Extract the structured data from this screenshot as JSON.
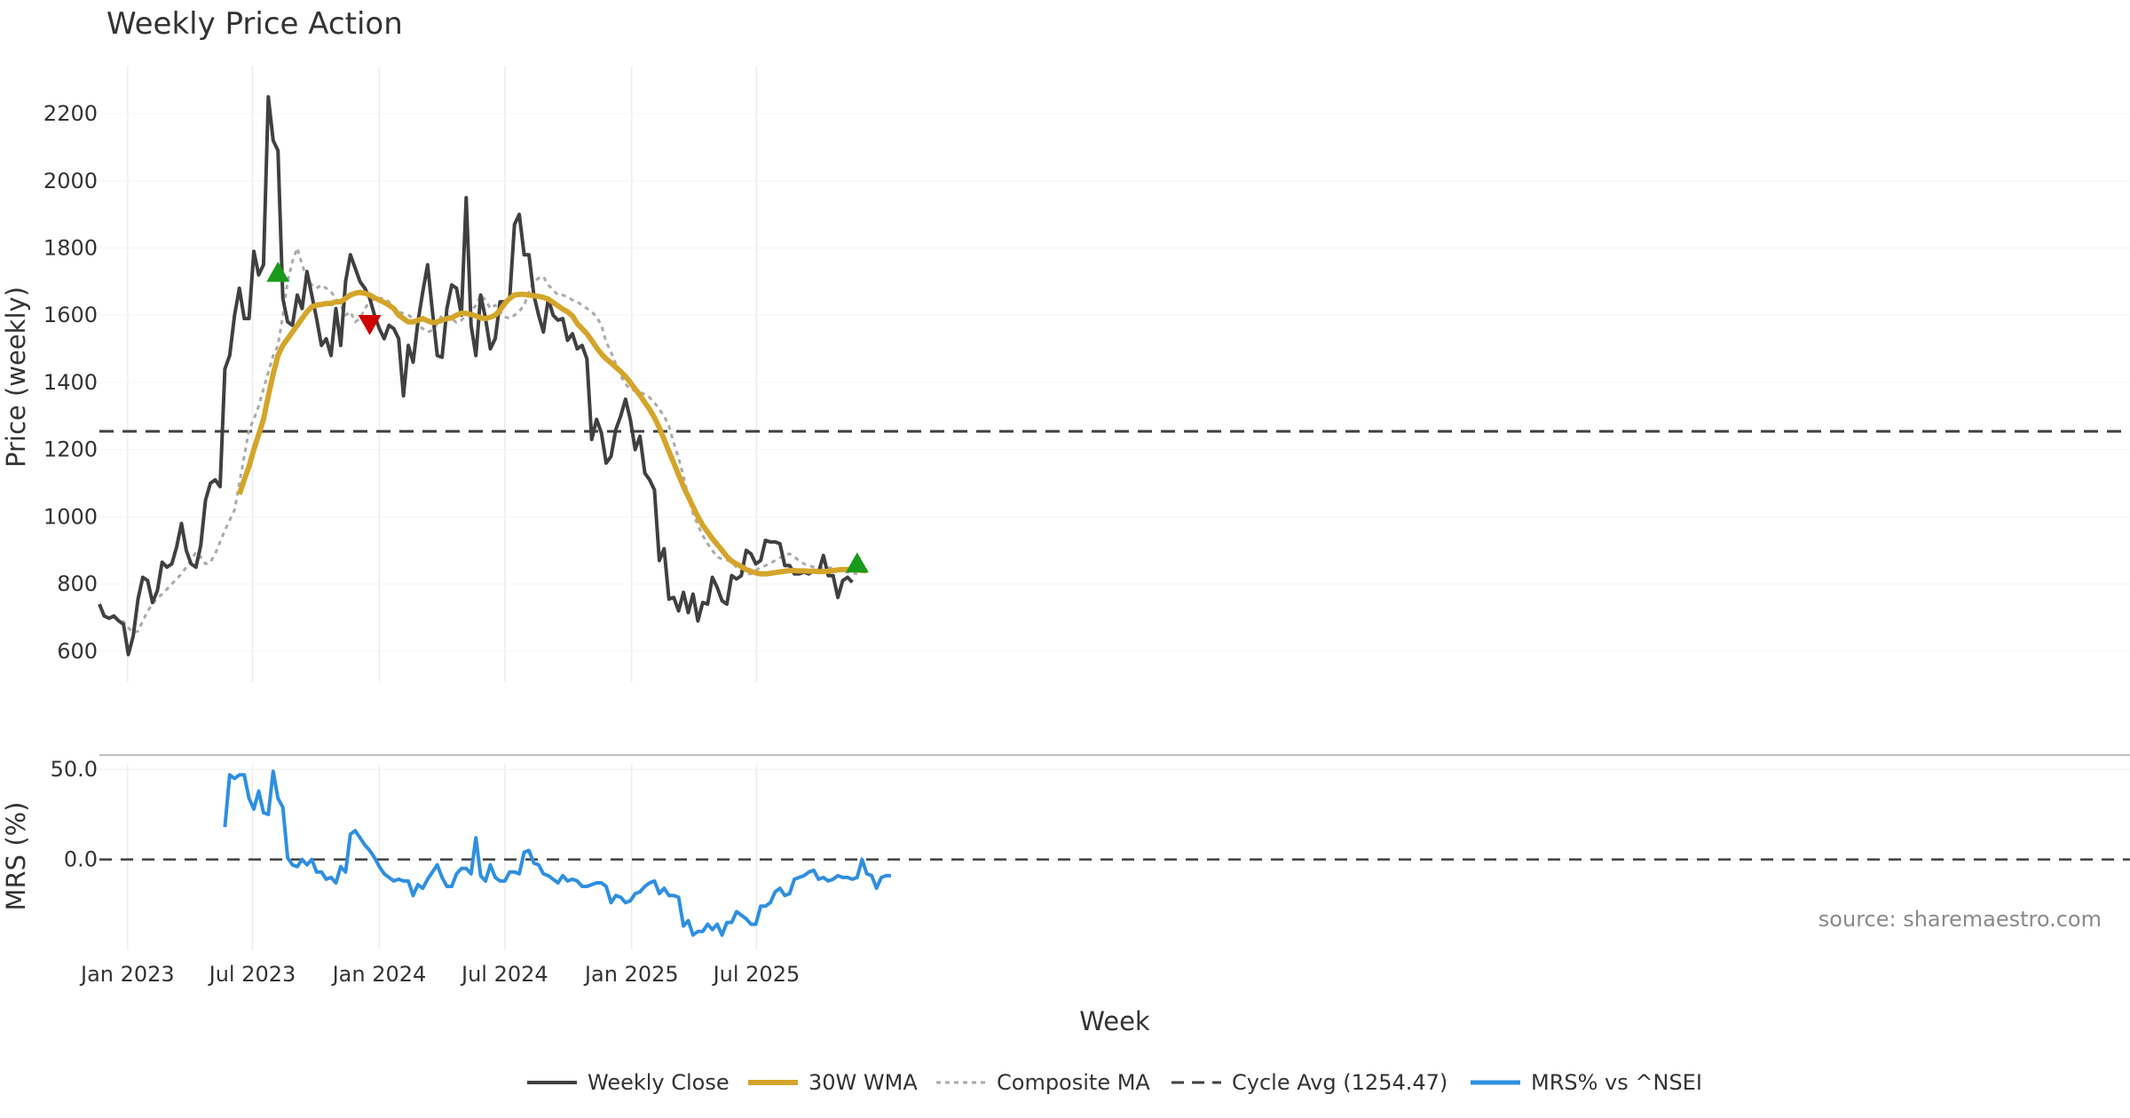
{
  "chart_data": [
    {
      "type": "line",
      "title": "Weekly Price Action",
      "ylabel": "Price (weekly)",
      "ylim": [
        510,
        2340
      ],
      "yticks": [
        600,
        800,
        1000,
        1200,
        1400,
        1600,
        1800,
        2000,
        2200
      ],
      "x_start": "2022-11-21",
      "x_step_days": 7,
      "cycle_avg": 1254.47,
      "series": [
        {
          "name": "Weekly Close",
          "color": "#404040",
          "start_index": 0,
          "values": [
            740,
            705,
            698,
            705,
            690,
            680,
            590,
            645,
            755,
            820,
            810,
            745,
            780,
            865,
            850,
            860,
            910,
            980,
            900,
            860,
            850,
            915,
            1050,
            1100,
            1110,
            1090,
            1440,
            1480,
            1600,
            1680,
            1590,
            1590,
            1790,
            1720,
            1750,
            2250,
            2120,
            2090,
            1650,
            1580,
            1570,
            1660,
            1620,
            1730,
            1660,
            1590,
            1510,
            1530,
            1480,
            1620,
            1510,
            1700,
            1780,
            1740,
            1700,
            1680,
            1650,
            1600,
            1560,
            1530,
            1570,
            1560,
            1530,
            1360,
            1510,
            1460,
            1580,
            1670,
            1750,
            1610,
            1480,
            1475,
            1620,
            1690,
            1680,
            1600,
            1950,
            1570,
            1480,
            1660,
            1590,
            1500,
            1530,
            1640,
            1640,
            1650,
            1870,
            1900,
            1780,
            1780,
            1660,
            1600,
            1550,
            1650,
            1600,
            1585,
            1590,
            1525,
            1545,
            1500,
            1510,
            1470,
            1230,
            1290,
            1250,
            1160,
            1180,
            1260,
            1300,
            1350,
            1290,
            1200,
            1240,
            1130,
            1110,
            1080,
            870,
            905,
            755,
            760,
            720,
            775,
            715,
            770,
            690,
            745,
            740,
            820,
            790,
            750,
            740,
            825,
            815,
            825,
            900,
            890,
            860,
            870,
            930,
            925,
            925,
            920,
            855,
            855,
            830,
            830,
            835,
            830,
            840,
            835,
            885,
            825,
            825,
            760,
            810,
            820,
            805
          ]
        },
        {
          "name": "30W WMA",
          "color": "#D4A52A",
          "start_index": 29,
          "values": [
            1067,
            1110,
            1150,
            1200,
            1245,
            1290,
            1360,
            1425,
            1480,
            1510,
            1530,
            1550,
            1570,
            1590,
            1610,
            1625,
            1630,
            1632,
            1635,
            1635,
            1640,
            1640,
            1650,
            1660,
            1665,
            1668,
            1665,
            1660,
            1652,
            1645,
            1638,
            1630,
            1620,
            1600,
            1590,
            1580,
            1580,
            1585,
            1590,
            1583,
            1578,
            1580,
            1585,
            1590,
            1592,
            1600,
            1606,
            1605,
            1602,
            1598,
            1592,
            1590,
            1594,
            1600,
            1615,
            1635,
            1650,
            1660,
            1662,
            1662,
            1660,
            1658,
            1656,
            1653,
            1648,
            1638,
            1628,
            1618,
            1610,
            1598,
            1575,
            1560,
            1545,
            1525,
            1503,
            1485,
            1470,
            1458,
            1445,
            1432,
            1418,
            1400,
            1380,
            1362,
            1340,
            1320,
            1295,
            1265,
            1230,
            1195,
            1160,
            1125,
            1090,
            1060,
            1030,
            1000,
            975,
            955,
            935,
            918,
            900,
            882,
            868,
            860,
            852,
            843,
            838,
            833,
            830,
            830,
            832,
            834,
            836,
            838,
            840,
            840,
            839,
            839,
            838,
            838,
            837,
            837,
            838,
            840,
            842,
            843,
            843,
            842,
            842,
            840,
            839
          ]
        },
        {
          "name": "Composite MA",
          "color": "#aaaaaa",
          "start_index": 3,
          "values": [
            700,
            693,
            688,
            670,
            655,
            660,
            690,
            720,
            740,
            758,
            770,
            785,
            800,
            815,
            830,
            850,
            870,
            895,
            880,
            860,
            865,
            890,
            925,
            960,
            990,
            1020,
            1100,
            1180,
            1260,
            1290,
            1330,
            1380,
            1430,
            1480,
            1510,
            1600,
            1700,
            1760,
            1800,
            1750,
            1710,
            1690,
            1680,
            1690,
            1680,
            1670,
            1650,
            1630,
            1600,
            1610,
            1580,
            1590,
            1620,
            1640,
            1650,
            1650,
            1650,
            1640,
            1620,
            1610,
            1605,
            1600,
            1590,
            1570,
            1560,
            1550,
            1555,
            1575,
            1600,
            1600,
            1590,
            1578,
            1585,
            1600,
            1612,
            1630,
            1660,
            1645,
            1620,
            1630,
            1610,
            1595,
            1590,
            1600,
            1612,
            1630,
            1670,
            1700,
            1710,
            1715,
            1690,
            1675,
            1660,
            1660,
            1655,
            1645,
            1640,
            1630,
            1620,
            1610,
            1595,
            1570,
            1520,
            1490,
            1455,
            1420,
            1395,
            1380,
            1375,
            1370,
            1365,
            1355,
            1340,
            1320,
            1300,
            1270,
            1220,
            1175,
            1120,
            1060,
            1010,
            975,
            945,
            920,
            900,
            880,
            875,
            872,
            865,
            850,
            838,
            830,
            830,
            840,
            850,
            855,
            862,
            870,
            878,
            885,
            890,
            880,
            870,
            860,
            855,
            850,
            848,
            848,
            848,
            848,
            845,
            840,
            835,
            832,
            830
          ]
        },
        {
          "name": "Cycle Avg (1254.47)",
          "color": "#404040"
        }
      ],
      "markers": [
        {
          "type": "up",
          "index": 37,
          "value": 1725,
          "color": "#1a9a1a"
        },
        {
          "type": "down",
          "index": 56,
          "value": 1575,
          "color": "#cc0000"
        },
        {
          "type": "up",
          "index": 157,
          "value": 860,
          "color": "#1a9a1a"
        }
      ],
      "annotation": "source: sharemaestro.com"
    },
    {
      "type": "line",
      "ylabel": "MRS (%)",
      "xlabel": "Week",
      "ylim": [
        -50,
        58
      ],
      "yticks": [
        0.0,
        50.0
      ],
      "yticklabels": [
        "0.0",
        "50.0"
      ],
      "xticklabels": [
        "Jan 2023",
        "Jul 2023",
        "Jan 2024",
        "Jul 2024",
        "Jan 2025",
        "Jul 2025"
      ],
      "xtick_dates": [
        "2023-01-01",
        "2023-07-01",
        "2024-01-01",
        "2024-07-01",
        "2025-01-01",
        "2025-07-01"
      ],
      "series": [
        {
          "name": "MRS% vs ^NSEI",
          "color": "#2E8FE0",
          "start_index": 26,
          "values": [
            18,
            47,
            45,
            47,
            47,
            34,
            28,
            38,
            26,
            25,
            49,
            34,
            29,
            1,
            -3,
            -4,
            0,
            -3,
            0,
            -7,
            -7,
            -11,
            -10,
            -13,
            -4,
            -7,
            14,
            16,
            12,
            8,
            5,
            1,
            -4,
            -8,
            -10,
            -12,
            -11,
            -12,
            -12,
            -20,
            -14,
            -16,
            -11,
            -7,
            -3,
            -10,
            -15,
            -15,
            -8,
            -5,
            -5,
            -8,
            12,
            -9,
            -12,
            -3,
            -10,
            -12,
            -12,
            -7,
            -7,
            -8,
            4,
            5,
            -2,
            -3,
            -8,
            -9,
            -11,
            -13,
            -9,
            -12,
            -11,
            -12,
            -15,
            -15,
            -14,
            -13,
            -13,
            -15,
            -24,
            -20,
            -21,
            -24,
            -23,
            -19,
            -18,
            -15,
            -13,
            -12,
            -19,
            -16,
            -20,
            -20,
            -21,
            -37,
            -34,
            -42,
            -40,
            -40,
            -36,
            -39,
            -36,
            -42,
            -35,
            -35,
            -29,
            -31,
            -33,
            -36,
            -36,
            -26,
            -26,
            -24,
            -18,
            -16,
            -20,
            -19,
            -11,
            -10,
            -9,
            -7,
            -6,
            -11,
            -10,
            -12,
            -11,
            -9,
            -10,
            -10,
            -11,
            -10,
            0,
            -8,
            -9,
            -16,
            -10,
            -9,
            -9
          ]
        },
        {
          "name": "zero line",
          "color": "#404040"
        }
      ]
    }
  ]
}
